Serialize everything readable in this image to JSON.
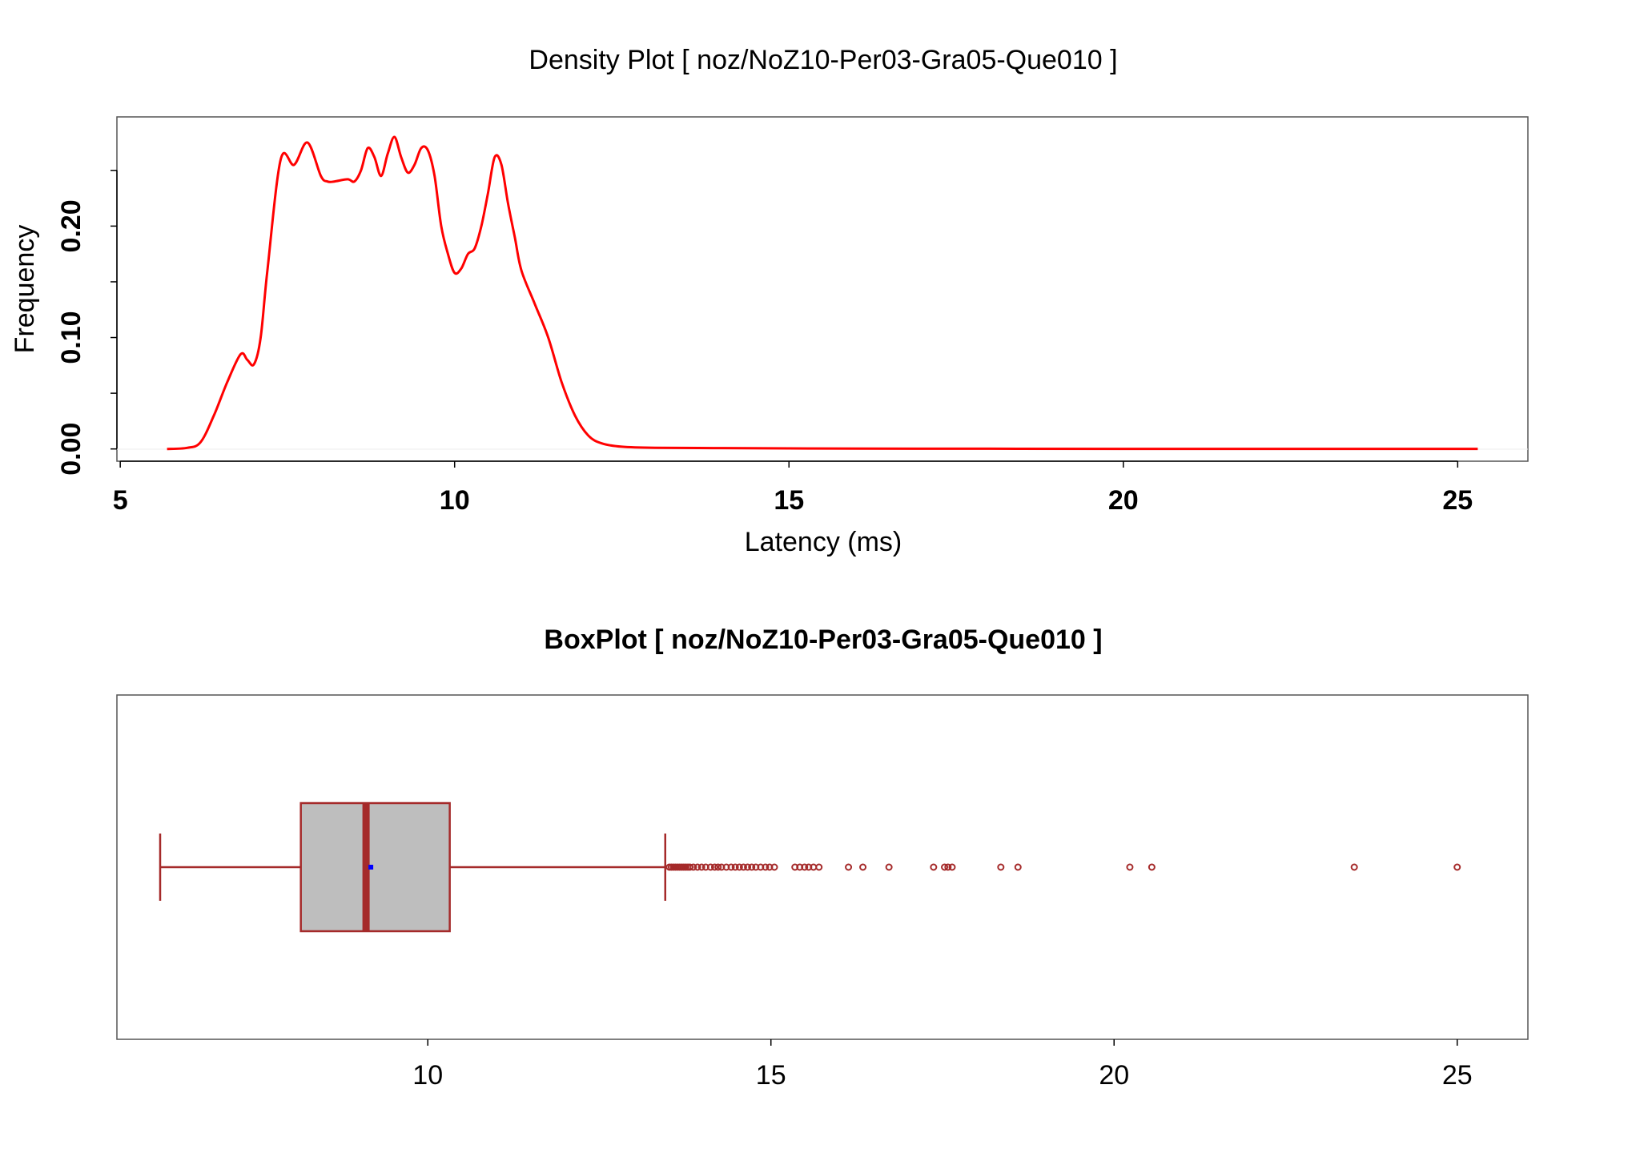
{
  "chart_data": [
    {
      "type": "line",
      "title": "Density Plot [ noz/NoZ10-Per03-Gra05-Que010 ]",
      "xlabel": "Latency (ms)",
      "ylabel": "Frequency",
      "xlim": [
        4.95,
        26.05
      ],
      "ylim": [
        -0.011,
        0.298
      ],
      "x_ticks": [
        5,
        10,
        15,
        20,
        25
      ],
      "x_tick_labels": [
        "5",
        "10",
        "15",
        "20",
        "25"
      ],
      "y_ticks": [
        0.0,
        0.05,
        0.1,
        0.15,
        0.2,
        0.25
      ],
      "y_tick_labels": [
        "0.00",
        "",
        "0.10",
        "",
        "0.20",
        ""
      ],
      "grid": false,
      "series_color": "#ff0000",
      "series": [
        {
          "x": [
            5.7,
            6.0,
            6.2,
            6.4,
            6.6,
            6.8,
            6.9,
            7.0,
            7.1,
            7.2,
            7.4,
            7.6,
            7.8,
            8.0,
            8.1,
            8.2,
            8.4,
            8.5,
            8.6,
            8.7,
            8.8,
            8.9,
            9.0,
            9.1,
            9.2,
            9.3,
            9.4,
            9.5,
            9.6,
            9.7,
            9.8,
            9.9,
            10.0,
            10.1,
            10.2,
            10.3,
            10.4,
            10.5,
            10.6,
            10.7,
            10.8,
            10.9,
            11.0,
            11.2,
            11.4,
            11.6,
            11.8,
            12.0,
            12.2,
            12.5,
            13.0,
            14.0,
            15.0,
            16.0,
            18.0,
            20.0,
            22.0,
            24.0,
            25.3
          ],
          "y": [
            0.0,
            0.001,
            0.006,
            0.03,
            0.06,
            0.085,
            0.08,
            0.076,
            0.1,
            0.16,
            0.26,
            0.255,
            0.275,
            0.245,
            0.24,
            0.24,
            0.242,
            0.24,
            0.25,
            0.27,
            0.262,
            0.245,
            0.265,
            0.28,
            0.262,
            0.248,
            0.255,
            0.27,
            0.268,
            0.245,
            0.2,
            0.175,
            0.158,
            0.162,
            0.175,
            0.18,
            0.2,
            0.23,
            0.262,
            0.255,
            0.22,
            0.19,
            0.16,
            0.13,
            0.1,
            0.06,
            0.03,
            0.012,
            0.005,
            0.002,
            0.001,
            0.0008,
            0.0005,
            0.0003,
            0.0002,
            0.0001,
            0.0001,
            0.0001,
            0.0001
          ]
        }
      ]
    },
    {
      "type": "box",
      "title": "BoxPlot [ noz/NoZ10-Per03-Gra05-Que010 ]",
      "xlim": [
        5.47,
        26.03
      ],
      "x_ticks": [
        10,
        15,
        20,
        25
      ],
      "x_tick_labels": [
        "10",
        "15",
        "20",
        "25"
      ],
      "box_fill": "#bebebe",
      "border_color": "#a52a2a",
      "mean_color": "#0000ff",
      "whisker_low": 6.1,
      "q1": 8.15,
      "median": 9.1,
      "q3": 10.32,
      "whisker_high": 13.46,
      "mean": 9.17,
      "outliers": [
        13.52,
        13.55,
        13.58,
        13.61,
        13.64,
        13.67,
        13.7,
        13.73,
        13.76,
        13.79,
        13.82,
        13.87,
        13.93,
        13.99,
        14.05,
        14.12,
        14.18,
        14.23,
        14.28,
        14.35,
        14.42,
        14.48,
        14.54,
        14.6,
        14.66,
        14.72,
        14.78,
        14.85,
        14.92,
        14.98,
        15.05,
        15.35,
        15.42,
        15.49,
        15.55,
        15.62,
        15.7,
        16.13,
        16.34,
        16.72,
        17.37,
        17.53,
        17.58,
        17.64,
        18.35,
        18.6,
        20.23,
        20.55,
        23.5,
        25.0
      ]
    }
  ]
}
